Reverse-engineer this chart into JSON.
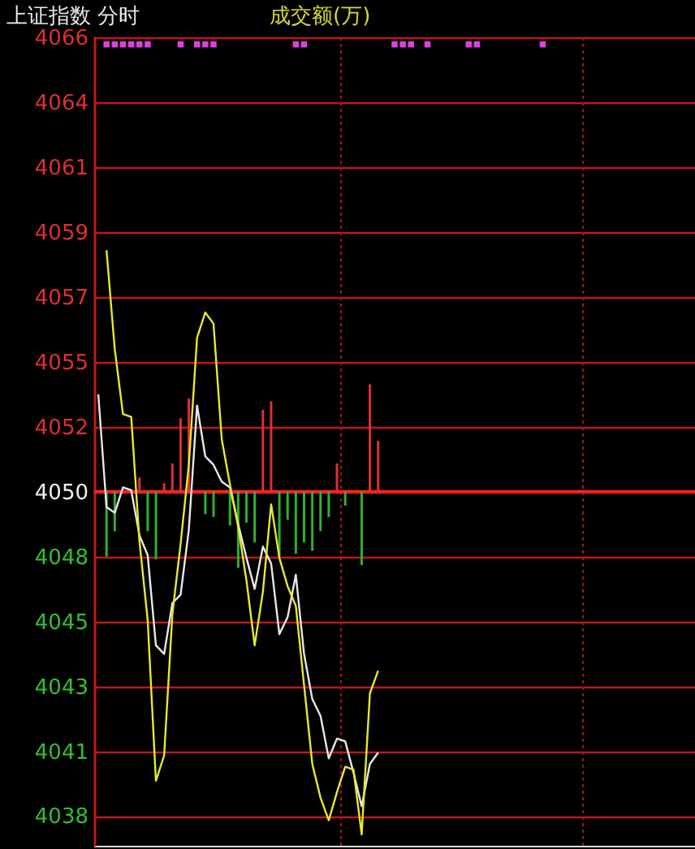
{
  "chart_data": {
    "type": "line",
    "title": "上证指数  分时",
    "subtitle": "成交额(万)",
    "categories": [
      null,
      null,
      null,
      null,
      null,
      null,
      null,
      null,
      null,
      null,
      null,
      null,
      null,
      null,
      null,
      null,
      null,
      null,
      null,
      null,
      null,
      null,
      null,
      null,
      null,
      null,
      null,
      null,
      null,
      null,
      null,
      null,
      null,
      null,
      null,
      null,
      null,
      null,
      null,
      null,
      null,
      null,
      null,
      null,
      null,
      null,
      null,
      null,
      null,
      null,
      null,
      null,
      null,
      null,
      null,
      null,
      null,
      null,
      null,
      null,
      null,
      null,
      null,
      null,
      null,
      null,
      null,
      null,
      null,
      null,
      null,
      null,
      null
    ],
    "ylim": [
      4037.4,
      4066.05
    ],
    "yticks": [
      {
        "value": 4038.45,
        "label": "4038"
      },
      {
        "value": 4040.75,
        "label": "4041"
      },
      {
        "value": 4043.05,
        "label": "4043"
      },
      {
        "value": 4045.35,
        "label": "4045"
      },
      {
        "value": 4047.65,
        "label": "4048"
      },
      {
        "value": 4049.95,
        "label": "4050"
      },
      {
        "value": 4052.25,
        "label": "4052"
      },
      {
        "value": 4054.55,
        "label": "4055"
      },
      {
        "value": 4056.85,
        "label": "4057"
      },
      {
        "value": 4059.15,
        "label": "4059"
      },
      {
        "value": 4061.45,
        "label": "4061"
      },
      {
        "value": 4063.75,
        "label": "4064"
      },
      {
        "value": 4066.05,
        "label": "4066"
      }
    ],
    "tick_labels": "y",
    "grid": "y",
    "ref_lines": [
      {
        "axis": "y",
        "value": 4049.95,
        "color": "#ff2020"
      }
    ],
    "series": [
      {
        "type": "bar",
        "colors": [
          null,
          "#30b030",
          "#30b030",
          null,
          null,
          "#e03030",
          "#30b030",
          "#30b030",
          "#e03030",
          "#e03030",
          "#e03030",
          "#e03030",
          null,
          "#30b030",
          "#30b030",
          null,
          "#30b030",
          "#30b030",
          "#30b030",
          "#30b030",
          "#e03030",
          "#e03030",
          "#30b030",
          "#30b030",
          "#30b030",
          "#30b030",
          "#30b030",
          "#30b030",
          "#30b030",
          "#e03030",
          "#30b030",
          null,
          "#30b030",
          "#e03030",
          "#e03030",
          null,
          null,
          null,
          null,
          null,
          null,
          null,
          null,
          null,
          null,
          null,
          null,
          null,
          null,
          null,
          null,
          null,
          null,
          null,
          null,
          null,
          null,
          null,
          null,
          null,
          null,
          null,
          null,
          null,
          null,
          null,
          null,
          null,
          null,
          null,
          null,
          null,
          null
        ],
        "base": [
          null,
          4049.95,
          4049.95,
          null,
          null,
          4049.95,
          4049.95,
          4049.95,
          4049.95,
          4049.95,
          4049.95,
          4049.95,
          null,
          4049.95,
          4049.95,
          null,
          4049.95,
          4049.95,
          4049.95,
          4049.95,
          4049.95,
          4049.95,
          4049.95,
          4049.95,
          4049.95,
          4049.95,
          4049.95,
          4049.95,
          4049.95,
          4049.95,
          4049.95,
          null,
          4049.95,
          4049.95,
          4049.95,
          null,
          null,
          null,
          null,
          null,
          null,
          null,
          null,
          null,
          null,
          null,
          null,
          null,
          null,
          null,
          null,
          null,
          null,
          null,
          null,
          null,
          null,
          null,
          null,
          null,
          null,
          null,
          null,
          null,
          null,
          null,
          null,
          null,
          null,
          null,
          null,
          null,
          null
        ],
        "values": [
          null,
          -2.3,
          -1.4,
          null,
          null,
          0.5,
          -1.4,
          -2.4,
          0.3,
          1.0,
          2.6,
          3.3,
          null,
          -0.8,
          -0.9,
          null,
          -1.2,
          -2.7,
          -1.1,
          -1.8,
          2.9,
          3.2,
          -2.3,
          -1.0,
          -2.2,
          -1.8,
          -2.1,
          -1.4,
          -0.9,
          1.0,
          -0.5,
          null,
          -2.6,
          3.8,
          1.8,
          null,
          null,
          null,
          null,
          null,
          null,
          null,
          null,
          null,
          null,
          null,
          null,
          null,
          null,
          null,
          null,
          null,
          null,
          null,
          null,
          null,
          null,
          null,
          null,
          null,
          null,
          null,
          null,
          null,
          null,
          null,
          null,
          null,
          null,
          null,
          null,
          null,
          null
        ]
      },
      {
        "color": "#e8e8e8",
        "values": [
          4053.4,
          4049.4,
          4049.2,
          4050.1,
          4050.0,
          4048.4,
          4047.7,
          4044.5,
          4044.2,
          4046.0,
          4046.3,
          4048.6,
          4053.0,
          4051.2,
          4050.9,
          4050.3,
          4050.1,
          4048.8,
          4047.6,
          4046.5,
          4048.0,
          4047.4,
          4044.9,
          4045.5,
          4047.0,
          4044.2,
          4042.6,
          4042.0,
          4040.5,
          4041.2,
          4041.1,
          4040.0,
          4038.8,
          4040.3,
          4040.7,
          null,
          null,
          null,
          null,
          null,
          null,
          null,
          null,
          null,
          null,
          null,
          null,
          null,
          null,
          null,
          null,
          null,
          null,
          null,
          null,
          null,
          null,
          null,
          null,
          null,
          null,
          null,
          null,
          null,
          null,
          null,
          null,
          null,
          null,
          null,
          null,
          null,
          null
        ]
      },
      {
        "color": "#e8e830",
        "values": [
          null,
          4058.5,
          4055.0,
          4052.7,
          4052.6,
          4048.2,
          4045.4,
          4039.7,
          4040.6,
          4045.6,
          4048.1,
          4050.9,
          4055.4,
          4056.3,
          4055.9,
          4051.8,
          4050.2,
          4048.7,
          4046.8,
          4044.5,
          4046.4,
          4049.5,
          4047.6,
          4046.6,
          4045.9,
          4043.1,
          4040.3,
          4039.1,
          4038.3,
          4039.3,
          4040.2,
          4040.1,
          4037.8,
          4042.8,
          4043.6,
          null,
          null,
          null,
          null,
          null,
          null,
          null,
          null,
          null,
          null,
          null,
          null,
          null,
          null,
          null,
          null,
          null,
          null,
          null,
          null,
          null,
          null,
          null,
          null,
          null,
          null,
          null,
          null,
          null,
          null,
          null,
          null,
          null,
          null,
          null,
          null,
          null,
          null
        ]
      },
      {
        "type": "scatter",
        "color": "#e040e0",
        "marker": "square",
        "values": [
          null,
          4065.8,
          4065.8,
          4065.8,
          4065.8,
          4065.8,
          4065.8,
          null,
          null,
          null,
          4065.8,
          null,
          4065.8,
          4065.8,
          4065.8,
          null,
          null,
          null,
          null,
          null,
          null,
          null,
          null,
          null,
          4065.8,
          4065.8,
          null,
          null,
          null,
          null,
          null,
          null,
          null,
          null,
          null,
          null,
          4065.8,
          4065.8,
          4065.8,
          null,
          4065.8,
          null,
          null,
          null,
          null,
          4065.8,
          4065.8,
          null,
          null,
          null,
          null,
          null,
          null,
          null,
          4065.8,
          null,
          null,
          null,
          null,
          null,
          null,
          null,
          null,
          null,
          null,
          null,
          null,
          null,
          null,
          null,
          null,
          null,
          null
        ]
      }
    ]
  }
}
